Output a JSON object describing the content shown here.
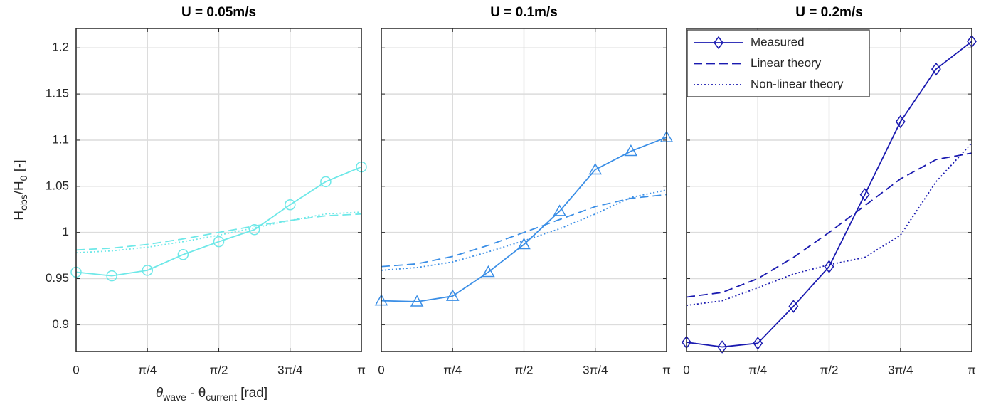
{
  "chart_data": [
    {
      "type": "line",
      "title": "U = 0.05m/s",
      "ylabel": [
        "H",
        "obs",
        "/H",
        "0",
        " [-]"
      ],
      "xlabel": [
        "θ",
        "wave",
        " - θ",
        "current",
        " [rad]"
      ],
      "x": [
        0,
        0.3927,
        0.7854,
        1.1781,
        1.5708,
        1.9635,
        2.3562,
        2.7489,
        3.1416
      ],
      "xlim": [
        0,
        3.1416
      ],
      "ylim": [
        0.871,
        1.221
      ],
      "xticks": [
        0,
        {
          "value": 0.7854,
          "label": "π/4"
        },
        {
          "value": 1.5708,
          "label": "π/2"
        },
        {
          "value": 2.3562,
          "label": "3π/4"
        },
        {
          "value": 3.1416,
          "label": "π"
        }
      ],
      "yticks": [
        0.9,
        0.95,
        1,
        1.05,
        1.1,
        1.15,
        1.2
      ],
      "show_yticklabels": true,
      "grid": true,
      "series": [
        {
          "color": "#6ee8e8",
          "linestyle": "solid",
          "marker": "circle",
          "values": [
            0.957,
            0.953,
            0.959,
            0.976,
            0.99,
            1.003,
            1.03,
            1.055,
            1.071
          ]
        },
        {
          "color": "#6ee8e8",
          "linestyle": "dashed",
          "values": [
            0.981,
            0.983,
            0.987,
            0.993,
            1.0,
            1.007,
            1.013,
            1.018,
            1.02
          ]
        },
        {
          "color": "#6ee8e8",
          "linestyle": "dotted",
          "values": [
            0.978,
            0.98,
            0.984,
            0.99,
            0.997,
            1.005,
            1.013,
            1.02,
            1.022
          ]
        }
      ]
    },
    {
      "type": "line",
      "title": "U = 0.1m/s",
      "x": [
        0,
        0.3927,
        0.7854,
        1.1781,
        1.5708,
        1.9635,
        2.3562,
        2.7489,
        3.1416
      ],
      "xlim": [
        0,
        3.1416
      ],
      "ylim": [
        0.871,
        1.221
      ],
      "xticks": [
        0,
        {
          "value": 0.7854,
          "label": "π/4"
        },
        {
          "value": 1.5708,
          "label": "π/2"
        },
        {
          "value": 2.3562,
          "label": "3π/4"
        },
        {
          "value": 3.1416,
          "label": "π"
        }
      ],
      "yticks": [
        0.9,
        0.95,
        1,
        1.05,
        1.1,
        1.15,
        1.2
      ],
      "show_yticklabels": false,
      "grid": true,
      "series": [
        {
          "color": "#3a8ee6",
          "linestyle": "solid",
          "marker": "triangle",
          "values": [
            0.926,
            0.925,
            0.931,
            0.957,
            0.987,
            1.023,
            1.068,
            1.088,
            1.103
          ]
        },
        {
          "color": "#3a8ee6",
          "linestyle": "dashed",
          "values": [
            0.963,
            0.966,
            0.974,
            0.986,
            1.0,
            1.014,
            1.028,
            1.037,
            1.041
          ]
        },
        {
          "color": "#3a8ee6",
          "linestyle": "dotted",
          "values": [
            0.959,
            0.962,
            0.968,
            0.979,
            0.991,
            1.004,
            1.02,
            1.038,
            1.046
          ]
        }
      ]
    },
    {
      "type": "line",
      "title": "U = 0.2m/s",
      "x": [
        0,
        0.3927,
        0.7854,
        1.1781,
        1.5708,
        1.9635,
        2.3562,
        2.7489,
        3.1416
      ],
      "xlim": [
        0,
        3.1416
      ],
      "ylim": [
        0.871,
        1.221
      ],
      "xticks": [
        0,
        {
          "value": 0.7854,
          "label": "π/4"
        },
        {
          "value": 1.5708,
          "label": "π/2"
        },
        {
          "value": 2.3562,
          "label": "3π/4"
        },
        {
          "value": 3.1416,
          "label": "π"
        }
      ],
      "yticks": [
        0.9,
        0.95,
        1,
        1.05,
        1.1,
        1.15,
        1.2
      ],
      "show_yticklabels": false,
      "grid": true,
      "legend": "upper left",
      "series": [
        {
          "name": "Measured",
          "color": "#1a1ab0",
          "linestyle": "solid",
          "marker": "diamond",
          "values": [
            0.881,
            0.876,
            0.88,
            0.92,
            0.963,
            1.041,
            1.12,
            1.177,
            1.207
          ]
        },
        {
          "name": "Linear theory",
          "color": "#1a1ab0",
          "linestyle": "dashed",
          "values": [
            0.93,
            0.935,
            0.95,
            0.973,
            1.0,
            1.029,
            1.058,
            1.079,
            1.086
          ]
        },
        {
          "name": "Non-linear theory",
          "color": "#1a1ab0",
          "linestyle": "dotted",
          "values": [
            0.921,
            0.926,
            0.94,
            0.955,
            0.965,
            0.973,
            0.997,
            1.055,
            1.097
          ]
        }
      ]
    }
  ]
}
